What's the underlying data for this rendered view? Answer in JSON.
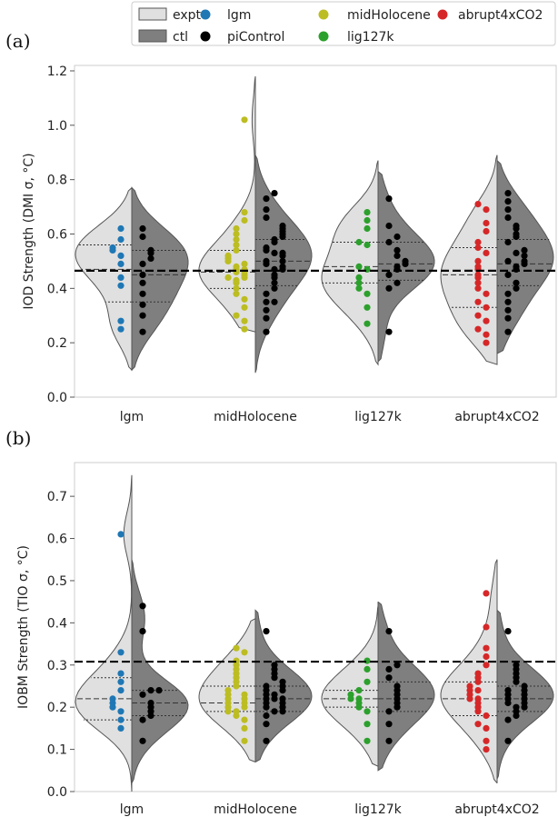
{
  "legend": {
    "items": [
      {
        "kind": "patch",
        "label": "expt",
        "color": "#e0e0e0"
      },
      {
        "kind": "patch",
        "label": "ctl",
        "color": "#7f7f7f"
      },
      {
        "kind": "dot",
        "label": "lgm",
        "color": "#1f77b4"
      },
      {
        "kind": "dot",
        "label": "piControl",
        "color": "#000000"
      },
      {
        "kind": "dot",
        "label": "midHolocene",
        "color": "#bcbd22"
      },
      {
        "kind": "dot",
        "label": "lig127k",
        "color": "#2ca02c"
      },
      {
        "kind": "dot",
        "label": "abrupt4xCO2",
        "color": "#d62728"
      }
    ]
  },
  "colors": {
    "expt_fill": "#e0e0e0",
    "ctl_fill": "#7f7f7f",
    "outline": "#555555",
    "ctl_points": "#000000"
  },
  "chart_data": [
    {
      "panel_label": "(a)",
      "type": "violin",
      "ylabel": "IOD Strength (DMI σ, °C)",
      "ylim": [
        0,
        1.22
      ],
      "yticks": [
        "0.0",
        "0.2",
        "0.4",
        "0.6",
        "0.8",
        "1.0",
        "1.2"
      ],
      "ytick_values": [
        0,
        0.2,
        0.4,
        0.6,
        0.8,
        1.0,
        1.2
      ],
      "categories": [
        "lgm",
        "midHolocene",
        "lig127k",
        "abrupt4xCO2"
      ],
      "reference_line": 0.465,
      "grid": false,
      "control": {
        "name": "piControl",
        "points": [
          0.24,
          0.29,
          0.32,
          0.35,
          0.35,
          0.38,
          0.4,
          0.42,
          0.44,
          0.45,
          0.47,
          0.47,
          0.48,
          0.49,
          0.5,
          0.5,
          0.52,
          0.53,
          0.53,
          0.54,
          0.55,
          0.57,
          0.58,
          0.59,
          0.6,
          0.61,
          0.62,
          0.63,
          0.66,
          0.69,
          0.73,
          0.75
        ],
        "range": [
          0.09,
          0.89
        ],
        "quartiles": [
          0.41,
          0.5,
          0.58
        ]
      },
      "series": [
        {
          "name": "lgm",
          "color": "#1f77b4",
          "points": [
            0.25,
            0.28,
            0.41,
            0.44,
            0.49,
            0.52,
            0.54,
            0.55,
            0.58,
            0.62
          ],
          "range": [
            0.1,
            0.77
          ],
          "quartiles": [
            0.35,
            0.47,
            0.56
          ],
          "ctl_points": [
            0.24,
            0.3,
            0.34,
            0.38,
            0.42,
            0.45,
            0.49,
            0.51,
            0.53,
            0.54,
            0.59,
            0.62
          ],
          "ctl_range": [
            0.1,
            0.77
          ],
          "ctl_quartiles": [
            0.35,
            0.45,
            0.54
          ]
        },
        {
          "name": "midHolocene",
          "color": "#bcbd22",
          "points": [
            0.25,
            0.28,
            0.3,
            0.33,
            0.36,
            0.38,
            0.4,
            0.42,
            0.43,
            0.44,
            0.44,
            0.45,
            0.46,
            0.46,
            0.47,
            0.47,
            0.48,
            0.49,
            0.5,
            0.51,
            0.52,
            0.54,
            0.56,
            0.58,
            0.6,
            0.62,
            0.65,
            0.68,
            1.02
          ],
          "range": [
            0.24,
            1.18
          ],
          "quartiles": [
            0.4,
            0.46,
            0.54
          ],
          "ctl_points": [
            0.24,
            0.29,
            0.32,
            0.35,
            0.35,
            0.38,
            0.4,
            0.42,
            0.44,
            0.45,
            0.47,
            0.47,
            0.48,
            0.49,
            0.5,
            0.5,
            0.52,
            0.53,
            0.53,
            0.54,
            0.55,
            0.57,
            0.58,
            0.59,
            0.6,
            0.61,
            0.62,
            0.63,
            0.66,
            0.69,
            0.73,
            0.75
          ],
          "ctl_range": [
            0.09,
            0.89
          ],
          "ctl_quartiles": [
            0.41,
            0.5,
            0.58
          ]
        },
        {
          "name": "lig127k",
          "color": "#2ca02c",
          "points": [
            0.27,
            0.33,
            0.38,
            0.4,
            0.42,
            0.44,
            0.47,
            0.48,
            0.56,
            0.57,
            0.62,
            0.65,
            0.68
          ],
          "range": [
            0.12,
            0.87
          ],
          "quartiles": [
            0.42,
            0.48,
            0.57
          ],
          "ctl_points": [
            0.24,
            0.4,
            0.42,
            0.45,
            0.47,
            0.48,
            0.49,
            0.5,
            0.52,
            0.54,
            0.57,
            0.59,
            0.63,
            0.73
          ],
          "ctl_range": [
            0.13,
            0.83
          ],
          "ctl_quartiles": [
            0.43,
            0.49,
            0.57
          ]
        },
        {
          "name": "abrupt4xCO2",
          "color": "#d62728",
          "points": [
            0.2,
            0.23,
            0.25,
            0.28,
            0.3,
            0.33,
            0.35,
            0.38,
            0.4,
            0.42,
            0.44,
            0.45,
            0.47,
            0.48,
            0.5,
            0.53,
            0.55,
            0.57,
            0.61,
            0.64,
            0.69,
            0.71
          ],
          "range": [
            0.12,
            0.89
          ],
          "quartiles": [
            0.33,
            0.45,
            0.55
          ],
          "ctl_points": [
            0.24,
            0.29,
            0.32,
            0.35,
            0.38,
            0.4,
            0.42,
            0.45,
            0.47,
            0.48,
            0.49,
            0.5,
            0.5,
            0.52,
            0.53,
            0.54,
            0.57,
            0.59,
            0.6,
            0.62,
            0.63,
            0.66,
            0.69,
            0.72,
            0.75
          ],
          "ctl_range": [
            0.16,
            0.87
          ],
          "ctl_quartiles": [
            0.41,
            0.49,
            0.58
          ]
        }
      ]
    },
    {
      "panel_label": "(b)",
      "type": "violin",
      "ylabel": "IOBM Strength (TIO σ, °C)",
      "ylim": [
        0,
        0.78
      ],
      "yticks": [
        "0.0",
        "0.1",
        "0.2",
        "0.3",
        "0.4",
        "0.5",
        "0.6",
        "0.7"
      ],
      "ytick_values": [
        0,
        0.1,
        0.2,
        0.3,
        0.4,
        0.5,
        0.6,
        0.7
      ],
      "categories": [
        "lgm",
        "midHolocene",
        "lig127k",
        "abrupt4xCO2"
      ],
      "reference_line": 0.308,
      "grid": false,
      "series": [
        {
          "name": "lgm",
          "color": "#1f77b4",
          "points": [
            0.15,
            0.17,
            0.19,
            0.2,
            0.21,
            0.22,
            0.24,
            0.26,
            0.28,
            0.33,
            0.61
          ],
          "range": [
            0.0,
            0.75
          ],
          "quartiles": [
            0.17,
            0.22,
            0.27
          ],
          "ctl_points": [
            0.12,
            0.17,
            0.18,
            0.19,
            0.2,
            0.21,
            0.23,
            0.24,
            0.24,
            0.38,
            0.44
          ],
          "ctl_range": [
            0.02,
            0.55
          ],
          "ctl_quartiles": [
            0.18,
            0.21,
            0.24
          ]
        },
        {
          "name": "midHolocene",
          "color": "#bcbd22",
          "points": [
            0.12,
            0.15,
            0.17,
            0.18,
            0.19,
            0.19,
            0.2,
            0.2,
            0.21,
            0.21,
            0.22,
            0.22,
            0.23,
            0.23,
            0.24,
            0.25,
            0.26,
            0.27,
            0.28,
            0.29,
            0.3,
            0.31,
            0.33,
            0.34
          ],
          "range": [
            0.07,
            0.41
          ],
          "quartiles": [
            0.19,
            0.21,
            0.25
          ],
          "ctl_points": [
            0.12,
            0.16,
            0.18,
            0.19,
            0.19,
            0.2,
            0.2,
            0.21,
            0.21,
            0.22,
            0.22,
            0.22,
            0.23,
            0.23,
            0.24,
            0.24,
            0.25,
            0.25,
            0.26,
            0.27,
            0.28,
            0.29,
            0.3,
            0.38
          ],
          "ctl_range": [
            0.07,
            0.43
          ],
          "ctl_quartiles": [
            0.19,
            0.22,
            0.25
          ]
        },
        {
          "name": "lig127k",
          "color": "#2ca02c",
          "points": [
            0.12,
            0.16,
            0.19,
            0.2,
            0.21,
            0.22,
            0.22,
            0.23,
            0.24,
            0.26,
            0.29,
            0.31
          ],
          "range": [
            0.06,
            0.44
          ],
          "quartiles": [
            0.2,
            0.22,
            0.24
          ],
          "ctl_points": [
            0.12,
            0.16,
            0.19,
            0.2,
            0.21,
            0.22,
            0.23,
            0.24,
            0.25,
            0.27,
            0.29,
            0.3,
            0.38
          ],
          "ctl_range": [
            0.05,
            0.45
          ],
          "ctl_quartiles": [
            0.19,
            0.22,
            0.26
          ]
        },
        {
          "name": "abrupt4xCO2",
          "color": "#d62728",
          "points": [
            0.1,
            0.12,
            0.15,
            0.16,
            0.18,
            0.19,
            0.2,
            0.21,
            0.22,
            0.22,
            0.23,
            0.24,
            0.24,
            0.25,
            0.26,
            0.27,
            0.28,
            0.3,
            0.32,
            0.34,
            0.39,
            0.47
          ],
          "range": [
            0.02,
            0.55
          ],
          "quartiles": [
            0.18,
            0.22,
            0.26
          ],
          "ctl_points": [
            0.12,
            0.17,
            0.18,
            0.19,
            0.2,
            0.2,
            0.21,
            0.21,
            0.22,
            0.22,
            0.23,
            0.23,
            0.24,
            0.24,
            0.25,
            0.26,
            0.27,
            0.28,
            0.29,
            0.3,
            0.38
          ],
          "ctl_range": [
            0.03,
            0.43
          ],
          "ctl_quartiles": [
            0.19,
            0.22,
            0.25
          ]
        }
      ]
    }
  ]
}
